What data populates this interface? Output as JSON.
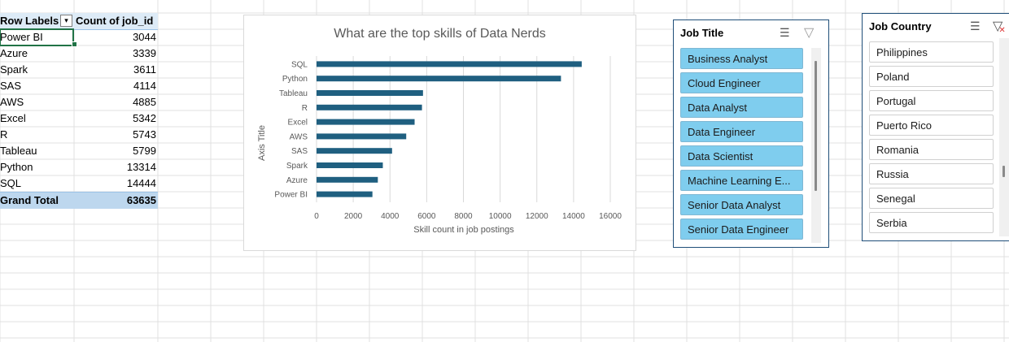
{
  "pivot": {
    "header_label": "Row Labels",
    "header_value": "Count of job_id",
    "filter_icon": "filter-dropdown-icon",
    "rows": [
      {
        "label": "Power BI",
        "value": "3044"
      },
      {
        "label": "Azure",
        "value": "3339"
      },
      {
        "label": "Spark",
        "value": "3611"
      },
      {
        "label": "SAS",
        "value": "4114"
      },
      {
        "label": "AWS",
        "value": "4885"
      },
      {
        "label": "Excel",
        "value": "5342"
      },
      {
        "label": "R",
        "value": "5743"
      },
      {
        "label": "Tableau",
        "value": "5799"
      },
      {
        "label": "Python",
        "value": "13314"
      },
      {
        "label": "SQL",
        "value": "14444"
      }
    ],
    "total_label": "Grand Total",
    "total_value": "63635"
  },
  "chart_data": {
    "type": "bar",
    "orientation": "horizontal",
    "title": "What are the top skills of Data Nerds",
    "xlabel": "Skill count in job postings",
    "ylabel": "Axis Title",
    "categories": [
      "SQL",
      "Python",
      "Tableau",
      "R",
      "Excel",
      "AWS",
      "SAS",
      "Spark",
      "Azure",
      "Power BI"
    ],
    "values": [
      14444,
      13314,
      5799,
      5743,
      5342,
      4885,
      4114,
      3611,
      3339,
      3044
    ],
    "xlim": [
      0,
      16000
    ],
    "xticks": [
      "0",
      "2000",
      "4000",
      "6000",
      "8000",
      "10000",
      "12000",
      "14000",
      "16000"
    ],
    "grid": true,
    "bar_color": "#1f5f80"
  },
  "slicer_job_title": {
    "title": "Job Title",
    "items": [
      {
        "label": "Business Analyst",
        "selected": true
      },
      {
        "label": "Cloud Engineer",
        "selected": true
      },
      {
        "label": "Data Analyst",
        "selected": true
      },
      {
        "label": "Data Engineer",
        "selected": true
      },
      {
        "label": "Data Scientist",
        "selected": true
      },
      {
        "label": "Machine Learning E...",
        "selected": true
      },
      {
        "label": "Senior Data Analyst",
        "selected": true
      },
      {
        "label": "Senior Data Engineer",
        "selected": true
      }
    ]
  },
  "slicer_job_country": {
    "title": "Job Country",
    "items": [
      {
        "label": "Philippines",
        "selected": false
      },
      {
        "label": "Poland",
        "selected": false
      },
      {
        "label": "Portugal",
        "selected": false
      },
      {
        "label": "Puerto Rico",
        "selected": false
      },
      {
        "label": "Romania",
        "selected": false
      },
      {
        "label": "Russia",
        "selected": false
      },
      {
        "label": "Senegal",
        "selected": false
      },
      {
        "label": "Serbia",
        "selected": false
      }
    ]
  },
  "icons": {
    "multiselect": "multi-select-icon",
    "clear_filter": "clear-filter-icon"
  },
  "colors": {
    "pivot_header": "#ddebf7",
    "pivot_total": "#bdd7ee",
    "slicer_selected": "#7fcdee",
    "slicer_border": "#1f4e79",
    "chart_bar": "#1f5f80"
  }
}
